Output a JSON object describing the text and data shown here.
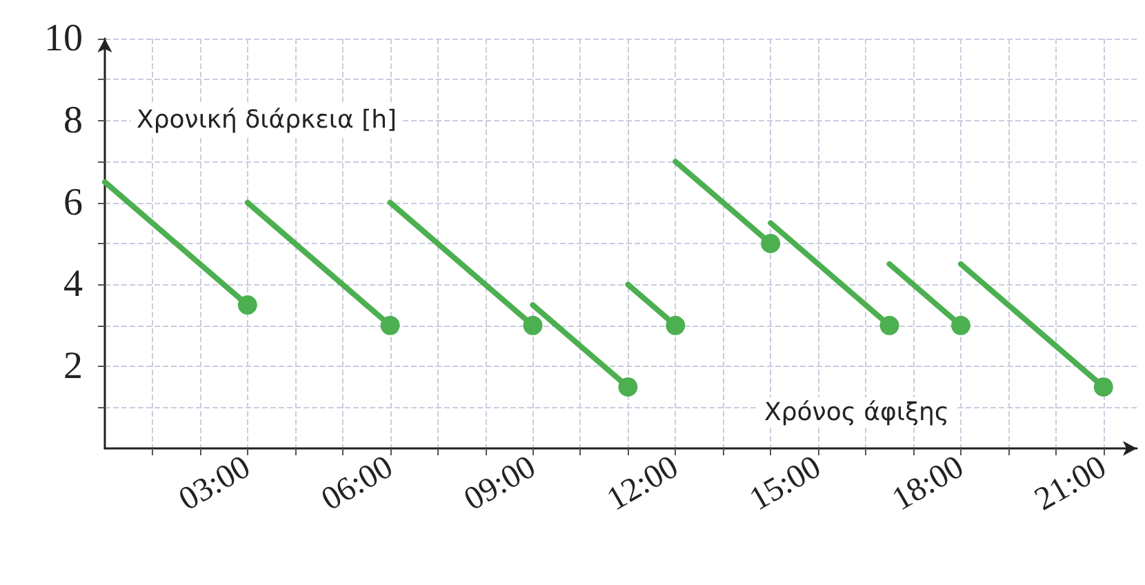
{
  "chart_data": {
    "type": "line",
    "xlabel": "Χρόνος άφιξης",
    "ylabel": "Χρονική διάρκεια [h]",
    "xlim": [
      0,
      21.7
    ],
    "xticks": [
      {
        "value": 1,
        "label": null
      },
      {
        "value": 2,
        "label": null
      },
      {
        "value": 3,
        "label": "03:00"
      },
      {
        "value": 4,
        "label": null
      },
      {
        "value": 5,
        "label": null
      },
      {
        "value": 6,
        "label": "06:00"
      },
      {
        "value": 7,
        "label": null
      },
      {
        "value": 8,
        "label": null
      },
      {
        "value": 9,
        "label": "09:00"
      },
      {
        "value": 10,
        "label": null
      },
      {
        "value": 11,
        "label": null
      },
      {
        "value": 12,
        "label": "12:00"
      },
      {
        "value": 13,
        "label": null
      },
      {
        "value": 14,
        "label": null
      },
      {
        "value": 15,
        "label": "15:00"
      },
      {
        "value": 16,
        "label": null
      },
      {
        "value": 17,
        "label": null
      },
      {
        "value": 18,
        "label": "18:00"
      },
      {
        "value": 19,
        "label": null
      },
      {
        "value": 20,
        "label": null
      },
      {
        "value": 21,
        "label": "21:00"
      }
    ],
    "ylim": [
      0,
      10
    ],
    "yticks": [
      {
        "value": 1,
        "label": null
      },
      2,
      {
        "value": 3,
        "label": null
      },
      4,
      {
        "value": 5,
        "label": null
      },
      6,
      {
        "value": 7,
        "label": null
      },
      8,
      {
        "value": 9,
        "label": null
      },
      10
    ],
    "grid": true,
    "marker": "none",
    "line_style": "solid",
    "series": [
      {
        "color": "#4caf50",
        "x": [
          0,
          3
        ],
        "values": [
          6.5,
          3.5
        ]
      },
      {
        "color": "#4caf50",
        "x": [
          3,
          6
        ],
        "values": [
          6,
          3
        ]
      },
      {
        "color": "#4caf50",
        "x": [
          6,
          9
        ],
        "values": [
          6,
          3
        ]
      },
      {
        "color": "#4caf50",
        "x": [
          9,
          11
        ],
        "values": [
          3.5,
          1.5
        ]
      },
      {
        "color": "#4caf50",
        "x": [
          11,
          12
        ],
        "values": [
          4,
          3
        ]
      },
      {
        "color": "#4caf50",
        "x": [
          12,
          14
        ],
        "values": [
          7,
          5
        ]
      },
      {
        "color": "#4caf50",
        "x": [
          14,
          16.5
        ],
        "values": [
          5.5,
          3
        ]
      },
      {
        "color": "#4caf50",
        "x": [
          16.5,
          18
        ],
        "values": [
          4.5,
          3
        ]
      },
      {
        "color": "#4caf50",
        "x": [
          18,
          21
        ],
        "values": [
          4.5,
          1.5
        ]
      },
      {
        "type": "scatter",
        "color": "#4caf50",
        "marker": "circle",
        "x": [
          3,
          6,
          9,
          11,
          12,
          14,
          16.5,
          18,
          21
        ],
        "values": [
          3.5,
          3,
          3,
          1.5,
          3,
          5,
          3,
          3,
          1.5
        ]
      }
    ]
  }
}
